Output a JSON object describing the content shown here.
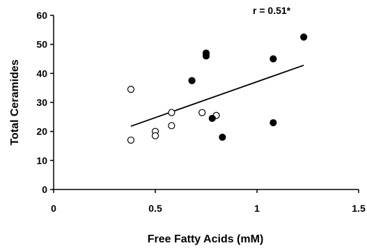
{
  "chart_data": {
    "type": "scatter",
    "title": "",
    "xlabel": "Free Fatty Acids (mM)",
    "ylabel": "Total Ceramides",
    "xlim": [
      0,
      1.5
    ],
    "ylim": [
      0,
      60
    ],
    "xticks": [
      0,
      0.5,
      1,
      1.5
    ],
    "xtick_labels": [
      "0",
      "0.5",
      "1",
      "1.5"
    ],
    "yticks": [
      0,
      10,
      20,
      30,
      40,
      50,
      60
    ],
    "ytick_labels": [
      "0",
      "10",
      "20",
      "30",
      "40",
      "50",
      "60"
    ],
    "grid": false,
    "annotation": "r = 0.51*",
    "series": [
      {
        "marker": "open-circle",
        "color": "#000000",
        "points": [
          {
            "x": 0.38,
            "y": 34.5
          },
          {
            "x": 0.38,
            "y": 17.0
          },
          {
            "x": 0.5,
            "y": 20.0
          },
          {
            "x": 0.5,
            "y": 18.5
          },
          {
            "x": 0.58,
            "y": 26.5
          },
          {
            "x": 0.58,
            "y": 22.0
          },
          {
            "x": 0.73,
            "y": 26.5
          },
          {
            "x": 0.8,
            "y": 25.5
          }
        ]
      },
      {
        "marker": "filled-circle",
        "color": "#000000",
        "points": [
          {
            "x": 0.68,
            "y": 37.5
          },
          {
            "x": 0.75,
            "y": 47.0
          },
          {
            "x": 0.75,
            "y": 46.0
          },
          {
            "x": 0.78,
            "y": 24.5
          },
          {
            "x": 0.83,
            "y": 18.0
          },
          {
            "x": 1.08,
            "y": 45.0
          },
          {
            "x": 1.08,
            "y": 23.0
          },
          {
            "x": 1.23,
            "y": 52.5
          }
        ]
      }
    ],
    "trendline": {
      "x": [
        0.38,
        1.23
      ],
      "y": [
        21.8,
        42.8
      ]
    }
  }
}
